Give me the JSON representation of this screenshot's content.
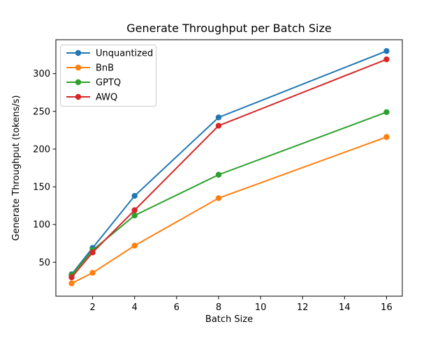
{
  "window": {
    "background": "#ffffff"
  },
  "chart_data": {
    "type": "line",
    "title": "Generate Throughput per Batch Size",
    "xlabel": "Batch Size",
    "ylabel": "Generate Throughput (tokens/s)",
    "x": [
      1,
      2,
      4,
      8,
      16
    ],
    "series": [
      {
        "name": "Unquantized",
        "color": "#1f77b4",
        "values": [
          34,
          69,
          138,
          242,
          330
        ]
      },
      {
        "name": "BnB",
        "color": "#ff7f0e",
        "values": [
          22,
          36,
          72,
          135,
          216
        ]
      },
      {
        "name": "GPTQ",
        "color": "#2ca02c",
        "values": [
          33,
          66,
          112,
          166,
          249
        ]
      },
      {
        "name": "AWQ",
        "color": "#d62728",
        "values": [
          30,
          63,
          119,
          231,
          319
        ]
      }
    ],
    "xlim": [
      0.25,
      16.75
    ],
    "ylim": [
      5,
      345
    ],
    "xticks": [
      2,
      4,
      6,
      8,
      10,
      12,
      14,
      16
    ],
    "yticks": [
      50,
      100,
      150,
      200,
      250,
      300
    ],
    "grid": false,
    "marker": "o",
    "legend_position": "upper left",
    "axis_color": "#000000",
    "legend_border_color": "#cccccc",
    "legend_background": "#ffffff"
  }
}
